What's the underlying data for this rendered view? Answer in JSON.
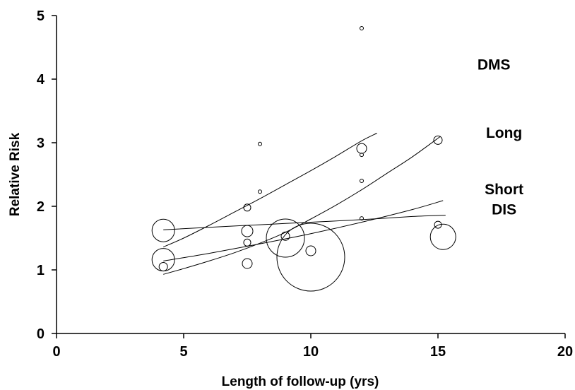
{
  "chart_data": {
    "type": "scatter",
    "title": "",
    "xlabel": "Length of follow-up (yrs)",
    "ylabel": "Relative Risk",
    "xlim": [
      0,
      20
    ],
    "ylim": [
      0,
      5
    ],
    "x_ticks": [
      0,
      5,
      10,
      15,
      20
    ],
    "y_ticks": [
      0,
      1,
      2,
      3,
      4,
      5
    ],
    "grid": false,
    "points": [
      {
        "x": 4.2,
        "y": 1.62,
        "size": 16
      },
      {
        "x": 4.2,
        "y": 1.16,
        "size": 16
      },
      {
        "x": 4.2,
        "y": 1.05,
        "size": 6
      },
      {
        "x": 7.5,
        "y": 1.98,
        "size": 5
      },
      {
        "x": 7.5,
        "y": 1.61,
        "size": 8
      },
      {
        "x": 7.5,
        "y": 1.43,
        "size": 5
      },
      {
        "x": 7.5,
        "y": 1.1,
        "size": 7
      },
      {
        "x": 8.0,
        "y": 2.98,
        "size": 2.5
      },
      {
        "x": 8.0,
        "y": 2.23,
        "size": 2.5
      },
      {
        "x": 9.0,
        "y": 1.5,
        "size": 27
      },
      {
        "x": 9.0,
        "y": 1.53,
        "size": 6
      },
      {
        "x": 10.0,
        "y": 1.2,
        "size": 48
      },
      {
        "x": 10.0,
        "y": 1.3,
        "size": 7
      },
      {
        "x": 12.0,
        "y": 4.8,
        "size": 2.5
      },
      {
        "x": 12.0,
        "y": 2.91,
        "size": 7
      },
      {
        "x": 12.0,
        "y": 2.81,
        "size": 2.5
      },
      {
        "x": 12.0,
        "y": 2.4,
        "size": 2.5
      },
      {
        "x": 12.0,
        "y": 1.81,
        "size": 2.5
      },
      {
        "x": 15.0,
        "y": 3.04,
        "size": 6
      },
      {
        "x": 15.0,
        "y": 1.71,
        "size": 5
      },
      {
        "x": 15.2,
        "y": 1.52,
        "size": 18
      }
    ],
    "series": [
      {
        "name": "DMS",
        "x": [
          4.2,
          5,
          6,
          7,
          8,
          9,
          10,
          11,
          12,
          12.6
        ],
        "y": [
          1.36,
          1.5,
          1.7,
          1.91,
          2.12,
          2.34,
          2.56,
          2.79,
          3.03,
          3.15
        ]
      },
      {
        "name": "Long",
        "x": [
          4.2,
          5,
          6,
          7,
          8,
          9,
          10,
          11,
          12,
          13,
          14,
          15.1
        ],
        "y": [
          0.93,
          1.02,
          1.14,
          1.27,
          1.42,
          1.59,
          1.8,
          2.02,
          2.26,
          2.52,
          2.78,
          3.1
        ]
      },
      {
        "name": "Short",
        "x": [
          4.2,
          6,
          8,
          10,
          12,
          14,
          15.2
        ],
        "y": [
          1.14,
          1.26,
          1.41,
          1.57,
          1.75,
          1.95,
          2.09
        ]
      },
      {
        "name": "DIS",
        "x": [
          4.2,
          6,
          8,
          10,
          12,
          14,
          15.3
        ],
        "y": [
          1.63,
          1.67,
          1.71,
          1.75,
          1.79,
          1.84,
          1.86
        ]
      }
    ]
  }
}
